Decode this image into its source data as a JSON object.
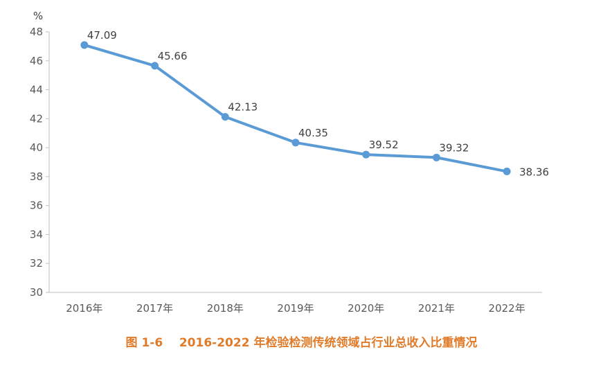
{
  "chart_data": {
    "type": "line",
    "title": "",
    "ylabel": "%",
    "xlabel": "",
    "categories": [
      "2016年",
      "2017年",
      "2018年",
      "2019年",
      "2020年",
      "2021年",
      "2022年"
    ],
    "series": [
      {
        "name": "检验检测传统领域占行业总收入比重",
        "values": [
          47.09,
          45.66,
          42.13,
          40.35,
          39.52,
          39.32,
          38.36
        ]
      }
    ],
    "data_labels": [
      "47.09",
      "45.66",
      "42.13",
      "40.35",
      "39.52",
      "39.32",
      "38.36"
    ],
    "ylim": [
      30,
      48
    ],
    "yticks": [
      30,
      32,
      34,
      36,
      38,
      40,
      42,
      44,
      46,
      48
    ],
    "grid": false,
    "line_color": "#5B9BD5"
  },
  "caption": "图 1-6    2016-2022 年检验检测传统领域占行业总收入比重情况",
  "caption_color": "#E07B2A"
}
